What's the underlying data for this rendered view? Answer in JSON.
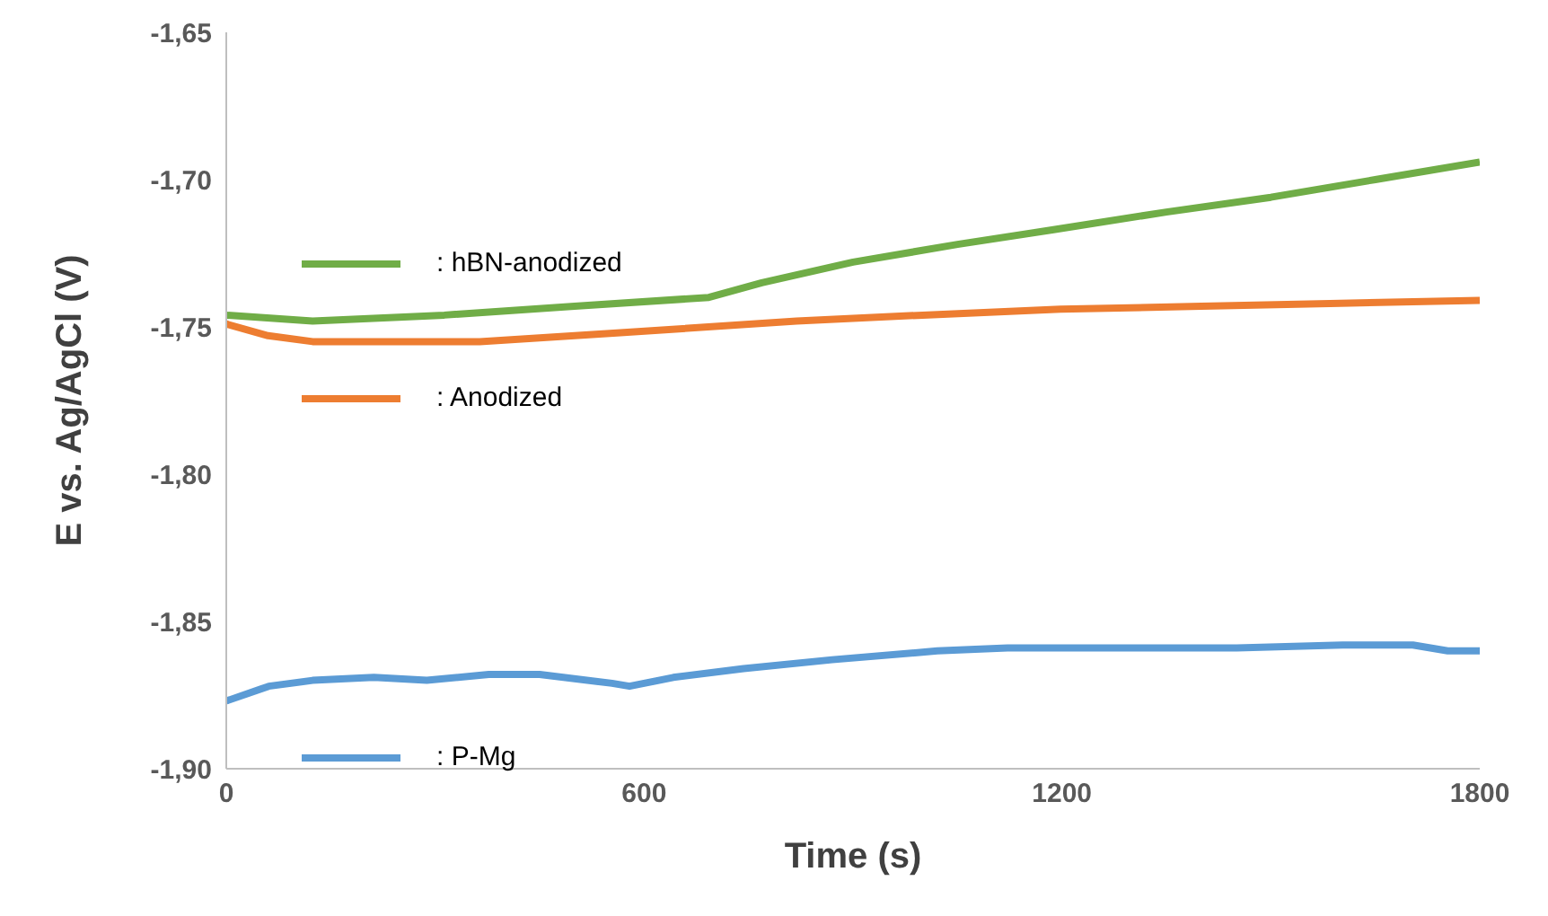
{
  "chart_data": {
    "type": "line",
    "xlabel": "Time (s)",
    "ylabel": "E vs. Ag/AgCl (V)",
    "xlim": [
      0,
      1800
    ],
    "xticks": [
      0,
      600,
      1200,
      1800
    ],
    "ylim": [
      -1.9,
      -1.65
    ],
    "yticks": [
      {
        "value": -1.9,
        "label": "-1,90"
      },
      {
        "value": -1.85,
        "label": "-1,85"
      },
      {
        "value": -1.8,
        "label": "-1,80"
      },
      {
        "value": -1.75,
        "label": "-1,75"
      },
      {
        "value": -1.7,
        "label": "-1,70"
      },
      {
        "value": -1.65,
        "label": "-1,65"
      }
    ],
    "grid": false,
    "legend": "left",
    "marker": "none",
    "line_style": "solid",
    "series": [
      {
        "name": ": hBN-anodized",
        "color": "#70ad47",
        "x": [
          0,
          124,
          313,
          500,
          693,
          769,
          900,
          1050,
          1188,
          1350,
          1500,
          1650,
          1800
        ],
        "values": [
          -1.746,
          -1.748,
          -1.746,
          -1.743,
          -1.74,
          -1.735,
          -1.728,
          -1.722,
          -1.717,
          -1.711,
          -1.706,
          -1.7,
          -1.694
        ]
      },
      {
        "name": ": Anodized",
        "color": "#ed7d31",
        "x": [
          0,
          60,
          124,
          364,
          566,
          819,
          1000,
          1198,
          1400,
          1600,
          1800
        ],
        "values": [
          -1.749,
          -1.753,
          -1.755,
          -1.755,
          -1.752,
          -1.748,
          -1.746,
          -1.744,
          -1.743,
          -1.742,
          -1.741
        ]
      },
      {
        "name": ": P-Mg",
        "color": "#5b9bd5",
        "x": [
          0,
          61,
          124,
          212,
          288,
          377,
          450,
          554,
          579,
          642,
          743,
          870,
          1021,
          1122,
          1274,
          1451,
          1603,
          1704,
          1754,
          1800
        ],
        "values": [
          -1.877,
          -1.872,
          -1.87,
          -1.869,
          -1.87,
          -1.868,
          -1.868,
          -1.871,
          -1.872,
          -1.869,
          -1.866,
          -1.863,
          -1.86,
          -1.859,
          -1.859,
          -1.859,
          -1.858,
          -1.858,
          -1.86,
          -1.86
        ]
      }
    ]
  }
}
